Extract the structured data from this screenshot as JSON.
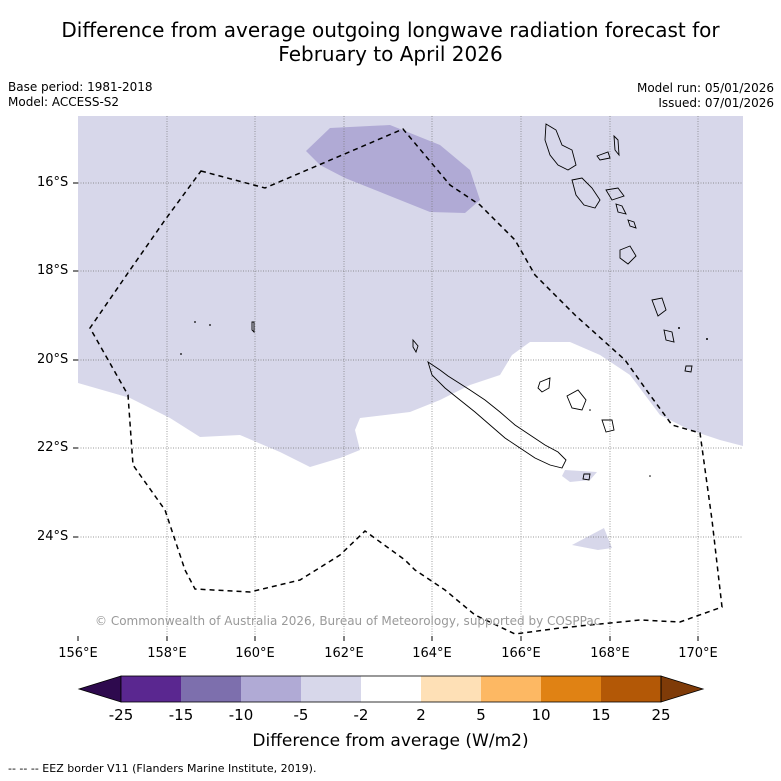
{
  "title_line1": "Difference from average outgoing longwave radiation forecast for",
  "title_line2": "February to April 2026",
  "base_period": "Base period: 1981-2018",
  "model": "Model: ACCESS-S2",
  "model_run": "Model run: 05/01/2026",
  "issued": "Issued: 07/01/2026",
  "lat_labels": [
    "16°S",
    "18°S",
    "20°S",
    "22°S",
    "24°S"
  ],
  "lon_labels": [
    "156°E",
    "158°E",
    "160°E",
    "162°E",
    "164°E",
    "166°E",
    "168°E",
    "170°E"
  ],
  "copyright": "© Commonwealth of Australia 2026, Bureau of Meteorology, supported by COSPPac",
  "colorbar": {
    "ticks": [
      "-25",
      "-15",
      "-10",
      "-5",
      "-2",
      "2",
      "5",
      "10",
      "15",
      "25"
    ],
    "colors": [
      "#2e0a4e",
      "#5a2790",
      "#7d6fad",
      "#b0aad5",
      "#d7d7ea",
      "#ffffff",
      "#fee0b6",
      "#fdb863",
      "#e08214",
      "#b35806",
      "#7f3b08"
    ],
    "title": "Difference from average (W/m2)"
  },
  "footnote": "--  --  -- EEZ border V11 (Flanders Marine Institute, 2019)."
}
